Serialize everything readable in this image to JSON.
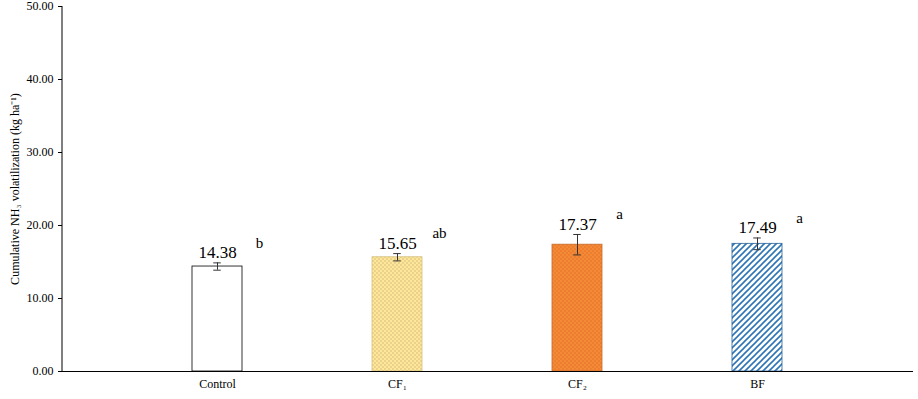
{
  "chart_data": {
    "type": "bar",
    "y_label": "Cumulative NH₃ volatilization (kg ha⁻¹)",
    "categories": [
      "Control",
      "CF₁",
      "CF₂",
      "BF"
    ],
    "values": [
      14.38,
      15.65,
      17.37,
      17.49
    ],
    "errors": [
      0.5,
      0.5,
      1.4,
      0.8
    ],
    "letters": [
      "b",
      "ab",
      "a",
      "a"
    ],
    "colors": [
      "#ffffff",
      "#ffe699",
      "#ed7d31",
      "#2e75b6"
    ],
    "ylim": [
      0,
      50
    ],
    "yticks": [
      {
        "value": 0,
        "label": "0.00"
      },
      {
        "value": 10,
        "label": "10.00"
      },
      {
        "value": 20,
        "label": "20.00"
      },
      {
        "value": 30,
        "label": "30.00"
      },
      {
        "value": 40,
        "label": "40.00"
      },
      {
        "value": 50,
        "label": "50.00"
      }
    ],
    "grid": false,
    "data_labels": true
  }
}
